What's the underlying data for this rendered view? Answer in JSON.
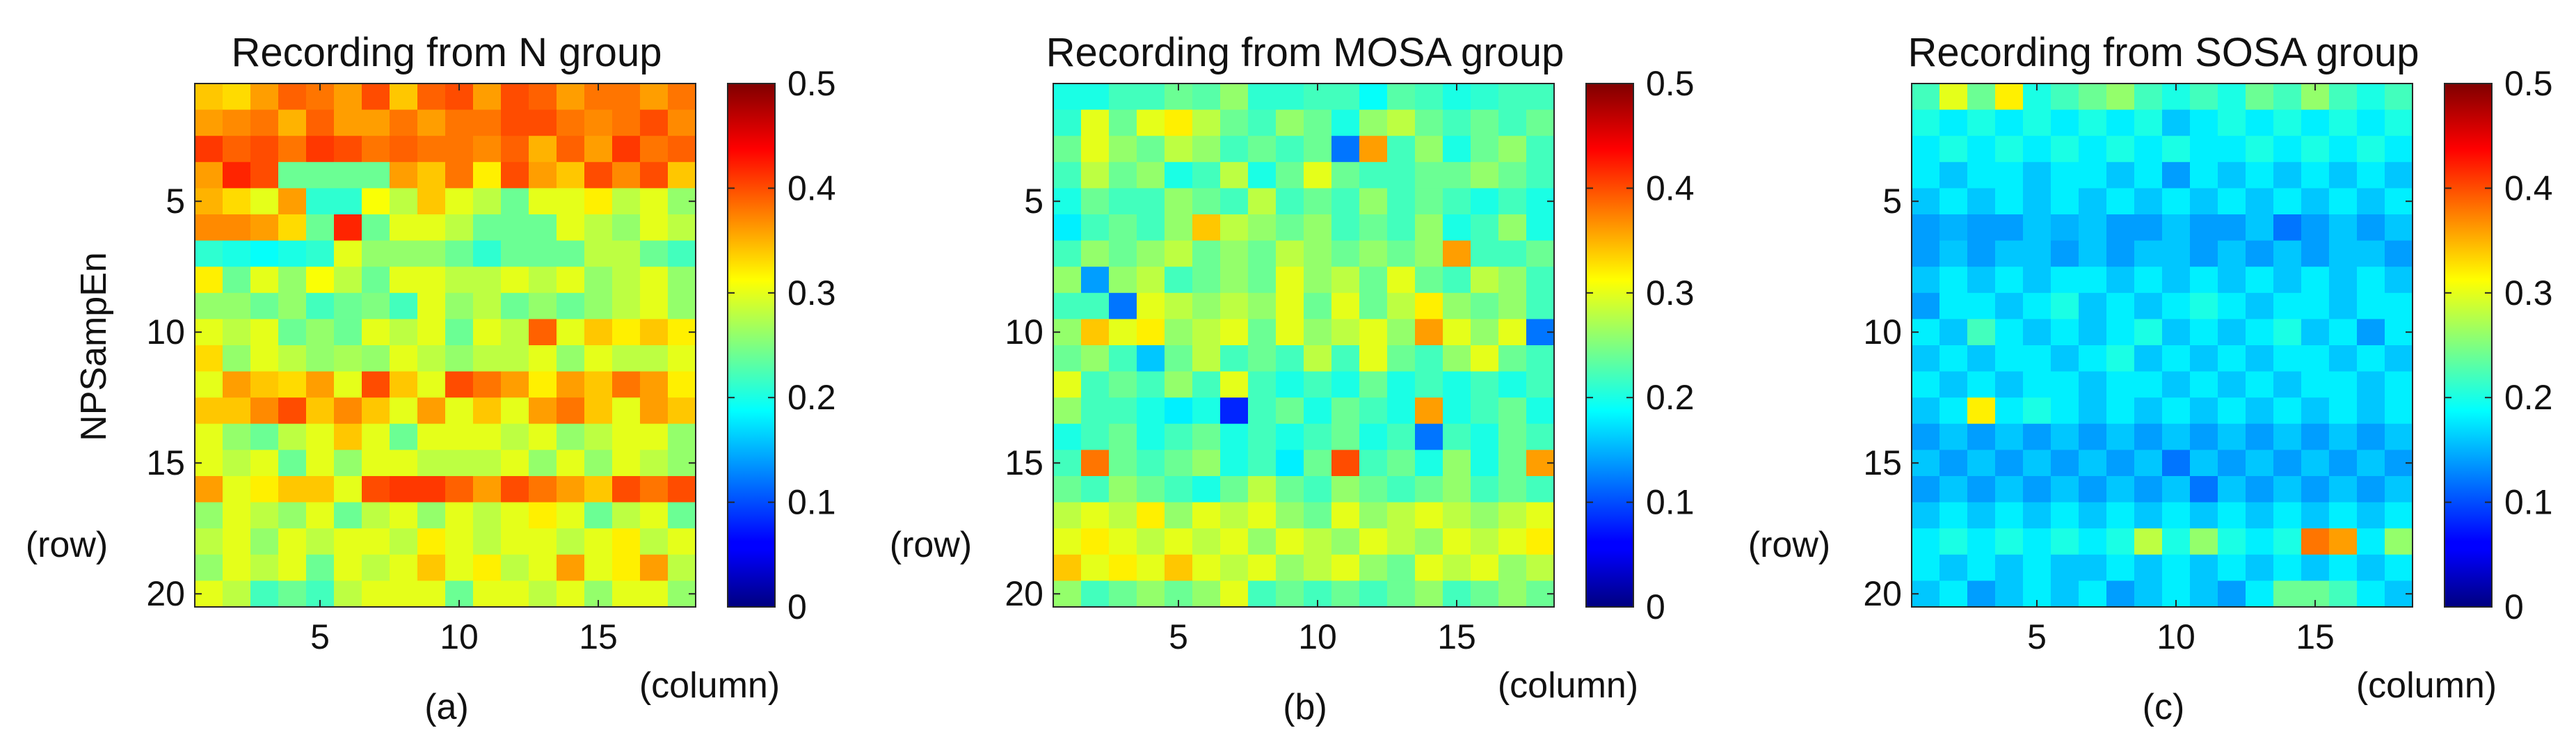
{
  "chart_data": [
    {
      "type": "heatmap",
      "title": "Recording from N group",
      "ylabel": "NPSampEn",
      "row_axis_note": "(row)",
      "column_axis_note": "(column)",
      "caption": "(a)",
      "x_ticks": [
        5,
        10,
        15
      ],
      "y_ticks": [
        5,
        10,
        15,
        20
      ],
      "colorbar_ticks": [
        0,
        0.1,
        0.2,
        0.3,
        0.4,
        0.5
      ],
      "clim": [
        0,
        0.5
      ],
      "colormap": "jet",
      "n_rows": 20,
      "n_cols": 18,
      "values": [
        [
          0.34,
          0.33,
          0.36,
          0.39,
          0.38,
          0.36,
          0.4,
          0.34,
          0.39,
          0.4,
          0.36,
          0.4,
          0.39,
          0.36,
          0.38,
          0.38,
          0.36,
          0.38
        ],
        [
          0.36,
          0.37,
          0.38,
          0.35,
          0.39,
          0.36,
          0.36,
          0.38,
          0.36,
          0.38,
          0.38,
          0.4,
          0.4,
          0.38,
          0.37,
          0.38,
          0.4,
          0.37
        ],
        [
          0.41,
          0.39,
          0.4,
          0.38,
          0.41,
          0.4,
          0.38,
          0.39,
          0.38,
          0.38,
          0.37,
          0.39,
          0.35,
          0.39,
          0.36,
          0.41,
          0.38,
          0.39
        ],
        [
          0.36,
          0.42,
          0.4,
          0.24,
          0.24,
          0.24,
          0.24,
          0.36,
          0.34,
          0.38,
          0.32,
          0.4,
          0.36,
          0.34,
          0.4,
          0.37,
          0.4,
          0.34
        ],
        [
          0.35,
          0.33,
          0.3,
          0.36,
          0.21,
          0.21,
          0.31,
          0.28,
          0.34,
          0.3,
          0.28,
          0.24,
          0.3,
          0.3,
          0.32,
          0.28,
          0.3,
          0.26
        ],
        [
          0.37,
          0.37,
          0.36,
          0.33,
          0.24,
          0.42,
          0.24,
          0.3,
          0.3,
          0.28,
          0.24,
          0.24,
          0.24,
          0.3,
          0.28,
          0.26,
          0.3,
          0.28
        ],
        [
          0.21,
          0.2,
          0.19,
          0.2,
          0.21,
          0.3,
          0.26,
          0.26,
          0.26,
          0.24,
          0.21,
          0.24,
          0.24,
          0.24,
          0.28,
          0.28,
          0.24,
          0.22
        ],
        [
          0.32,
          0.24,
          0.3,
          0.26,
          0.31,
          0.28,
          0.24,
          0.3,
          0.3,
          0.28,
          0.28,
          0.3,
          0.28,
          0.3,
          0.26,
          0.28,
          0.3,
          0.26
        ],
        [
          0.26,
          0.26,
          0.24,
          0.26,
          0.22,
          0.24,
          0.25,
          0.22,
          0.3,
          0.26,
          0.28,
          0.24,
          0.26,
          0.24,
          0.26,
          0.28,
          0.3,
          0.26
        ],
        [
          0.3,
          0.28,
          0.3,
          0.24,
          0.26,
          0.24,
          0.3,
          0.28,
          0.3,
          0.24,
          0.3,
          0.28,
          0.39,
          0.3,
          0.34,
          0.32,
          0.34,
          0.32
        ],
        [
          0.33,
          0.26,
          0.3,
          0.28,
          0.26,
          0.27,
          0.26,
          0.3,
          0.28,
          0.26,
          0.28,
          0.28,
          0.3,
          0.26,
          0.3,
          0.28,
          0.28,
          0.3
        ],
        [
          0.3,
          0.36,
          0.34,
          0.33,
          0.36,
          0.3,
          0.4,
          0.34,
          0.3,
          0.4,
          0.38,
          0.36,
          0.32,
          0.36,
          0.34,
          0.38,
          0.36,
          0.32
        ],
        [
          0.34,
          0.34,
          0.37,
          0.4,
          0.34,
          0.37,
          0.34,
          0.3,
          0.36,
          0.3,
          0.34,
          0.3,
          0.36,
          0.38,
          0.34,
          0.3,
          0.36,
          0.34
        ],
        [
          0.3,
          0.26,
          0.24,
          0.28,
          0.3,
          0.34,
          0.3,
          0.24,
          0.3,
          0.3,
          0.3,
          0.28,
          0.3,
          0.26,
          0.28,
          0.3,
          0.3,
          0.26
        ],
        [
          0.3,
          0.28,
          0.3,
          0.24,
          0.3,
          0.26,
          0.3,
          0.3,
          0.28,
          0.28,
          0.28,
          0.3,
          0.26,
          0.3,
          0.26,
          0.3,
          0.28,
          0.26
        ],
        [
          0.36,
          0.3,
          0.32,
          0.34,
          0.34,
          0.3,
          0.4,
          0.41,
          0.41,
          0.39,
          0.36,
          0.4,
          0.38,
          0.36,
          0.34,
          0.4,
          0.38,
          0.4
        ],
        [
          0.26,
          0.3,
          0.28,
          0.26,
          0.3,
          0.24,
          0.28,
          0.3,
          0.26,
          0.3,
          0.28,
          0.3,
          0.32,
          0.3,
          0.24,
          0.28,
          0.3,
          0.24
        ],
        [
          0.28,
          0.3,
          0.26,
          0.3,
          0.28,
          0.3,
          0.3,
          0.28,
          0.32,
          0.3,
          0.28,
          0.3,
          0.3,
          0.28,
          0.3,
          0.32,
          0.28,
          0.3
        ],
        [
          0.26,
          0.3,
          0.28,
          0.3,
          0.24,
          0.3,
          0.28,
          0.3,
          0.34,
          0.3,
          0.32,
          0.28,
          0.3,
          0.36,
          0.3,
          0.32,
          0.36,
          0.28
        ],
        [
          0.3,
          0.28,
          0.22,
          0.24,
          0.22,
          0.28,
          0.3,
          0.3,
          0.3,
          0.24,
          0.3,
          0.3,
          0.28,
          0.3,
          0.26,
          0.3,
          0.3,
          0.26
        ]
      ]
    },
    {
      "type": "heatmap",
      "title": "Recording from MOSA group",
      "row_axis_note": "(row)",
      "column_axis_note": "(column)",
      "caption": "(b)",
      "x_ticks": [
        5,
        10,
        15
      ],
      "y_ticks": [
        5,
        10,
        15,
        20
      ],
      "colorbar_ticks": [
        0,
        0.1,
        0.2,
        0.3,
        0.4,
        0.5
      ],
      "clim": [
        0,
        0.5
      ],
      "colormap": "jet",
      "n_rows": 20,
      "n_cols": 18,
      "values": [
        [
          0.2,
          0.2,
          0.22,
          0.22,
          0.24,
          0.23,
          0.26,
          0.21,
          0.21,
          0.22,
          0.22,
          0.19,
          0.23,
          0.22,
          0.2,
          0.21,
          0.22,
          0.22
        ],
        [
          0.21,
          0.3,
          0.24,
          0.3,
          0.32,
          0.28,
          0.24,
          0.22,
          0.26,
          0.24,
          0.2,
          0.26,
          0.28,
          0.24,
          0.22,
          0.24,
          0.22,
          0.24
        ],
        [
          0.24,
          0.3,
          0.26,
          0.24,
          0.28,
          0.26,
          0.22,
          0.24,
          0.22,
          0.24,
          0.12,
          0.36,
          0.22,
          0.26,
          0.2,
          0.24,
          0.26,
          0.22
        ],
        [
          0.22,
          0.28,
          0.24,
          0.26,
          0.2,
          0.22,
          0.28,
          0.2,
          0.24,
          0.3,
          0.24,
          0.22,
          0.22,
          0.24,
          0.24,
          0.26,
          0.24,
          0.22
        ],
        [
          0.2,
          0.24,
          0.22,
          0.22,
          0.26,
          0.24,
          0.22,
          0.28,
          0.22,
          0.24,
          0.22,
          0.26,
          0.22,
          0.24,
          0.22,
          0.2,
          0.22,
          0.2
        ],
        [
          0.18,
          0.22,
          0.24,
          0.22,
          0.26,
          0.34,
          0.28,
          0.26,
          0.24,
          0.26,
          0.22,
          0.24,
          0.22,
          0.26,
          0.2,
          0.22,
          0.26,
          0.2
        ],
        [
          0.22,
          0.26,
          0.24,
          0.26,
          0.28,
          0.24,
          0.26,
          0.24,
          0.28,
          0.26,
          0.24,
          0.26,
          0.24,
          0.26,
          0.36,
          0.22,
          0.22,
          0.24
        ],
        [
          0.26,
          0.14,
          0.26,
          0.28,
          0.22,
          0.24,
          0.26,
          0.24,
          0.3,
          0.26,
          0.28,
          0.24,
          0.3,
          0.24,
          0.22,
          0.28,
          0.26,
          0.22
        ],
        [
          0.22,
          0.22,
          0.12,
          0.3,
          0.28,
          0.26,
          0.28,
          0.26,
          0.3,
          0.24,
          0.3,
          0.24,
          0.28,
          0.32,
          0.26,
          0.24,
          0.26,
          0.22
        ],
        [
          0.26,
          0.34,
          0.3,
          0.32,
          0.26,
          0.28,
          0.3,
          0.24,
          0.3,
          0.26,
          0.28,
          0.3,
          0.26,
          0.36,
          0.3,
          0.26,
          0.3,
          0.12
        ],
        [
          0.24,
          0.26,
          0.22,
          0.16,
          0.24,
          0.28,
          0.22,
          0.24,
          0.22,
          0.28,
          0.22,
          0.3,
          0.24,
          0.22,
          0.26,
          0.3,
          0.24,
          0.22
        ],
        [
          0.3,
          0.22,
          0.24,
          0.22,
          0.26,
          0.22,
          0.3,
          0.22,
          0.2,
          0.22,
          0.2,
          0.24,
          0.2,
          0.22,
          0.2,
          0.22,
          0.2,
          0.22
        ],
        [
          0.26,
          0.22,
          0.22,
          0.2,
          0.18,
          0.2,
          0.08,
          0.22,
          0.24,
          0.2,
          0.24,
          0.22,
          0.2,
          0.36,
          0.2,
          0.22,
          0.24,
          0.2
        ],
        [
          0.2,
          0.22,
          0.24,
          0.2,
          0.22,
          0.24,
          0.2,
          0.22,
          0.2,
          0.22,
          0.24,
          0.2,
          0.22,
          0.12,
          0.22,
          0.2,
          0.24,
          0.22
        ],
        [
          0.22,
          0.38,
          0.24,
          0.22,
          0.24,
          0.26,
          0.2,
          0.22,
          0.18,
          0.24,
          0.4,
          0.22,
          0.24,
          0.2,
          0.26,
          0.2,
          0.24,
          0.36
        ],
        [
          0.24,
          0.22,
          0.26,
          0.24,
          0.22,
          0.2,
          0.24,
          0.28,
          0.24,
          0.22,
          0.26,
          0.24,
          0.22,
          0.24,
          0.26,
          0.22,
          0.24,
          0.22
        ],
        [
          0.28,
          0.3,
          0.28,
          0.32,
          0.26,
          0.3,
          0.28,
          0.3,
          0.26,
          0.24,
          0.3,
          0.26,
          0.28,
          0.3,
          0.28,
          0.26,
          0.28,
          0.3
        ],
        [
          0.3,
          0.32,
          0.3,
          0.28,
          0.3,
          0.28,
          0.3,
          0.26,
          0.3,
          0.28,
          0.26,
          0.3,
          0.28,
          0.26,
          0.3,
          0.28,
          0.3,
          0.32
        ],
        [
          0.34,
          0.3,
          0.32,
          0.3,
          0.34,
          0.3,
          0.28,
          0.3,
          0.26,
          0.28,
          0.3,
          0.26,
          0.24,
          0.3,
          0.28,
          0.3,
          0.26,
          0.28
        ],
        [
          0.26,
          0.22,
          0.24,
          0.26,
          0.24,
          0.26,
          0.3,
          0.22,
          0.24,
          0.22,
          0.24,
          0.22,
          0.24,
          0.26,
          0.22,
          0.24,
          0.26,
          0.24
        ]
      ]
    },
    {
      "type": "heatmap",
      "title": "Recording from SOSA group",
      "row_axis_note": "(row)",
      "column_axis_note": "(column)",
      "caption": "(c)",
      "x_ticks": [
        5,
        10,
        15
      ],
      "y_ticks": [
        5,
        10,
        15,
        20
      ],
      "colorbar_ticks": [
        0,
        0.1,
        0.2,
        0.3,
        0.4,
        0.5
      ],
      "clim": [
        0,
        0.5
      ],
      "colormap": "jet",
      "n_rows": 20,
      "n_cols": 18,
      "values": [
        [
          0.22,
          0.3,
          0.24,
          0.32,
          0.2,
          0.22,
          0.24,
          0.26,
          0.22,
          0.2,
          0.22,
          0.2,
          0.24,
          0.22,
          0.26,
          0.22,
          0.2,
          0.22
        ],
        [
          0.2,
          0.18,
          0.2,
          0.18,
          0.2,
          0.18,
          0.2,
          0.18,
          0.2,
          0.16,
          0.18,
          0.2,
          0.18,
          0.2,
          0.18,
          0.2,
          0.18,
          0.2
        ],
        [
          0.18,
          0.2,
          0.18,
          0.2,
          0.18,
          0.2,
          0.18,
          0.2,
          0.18,
          0.2,
          0.18,
          0.18,
          0.2,
          0.18,
          0.2,
          0.18,
          0.2,
          0.18
        ],
        [
          0.18,
          0.16,
          0.18,
          0.18,
          0.16,
          0.18,
          0.18,
          0.16,
          0.18,
          0.14,
          0.18,
          0.16,
          0.18,
          0.16,
          0.18,
          0.16,
          0.18,
          0.16
        ],
        [
          0.16,
          0.18,
          0.16,
          0.18,
          0.16,
          0.18,
          0.16,
          0.18,
          0.16,
          0.18,
          0.16,
          0.18,
          0.16,
          0.18,
          0.16,
          0.18,
          0.16,
          0.18
        ],
        [
          0.14,
          0.15,
          0.14,
          0.14,
          0.16,
          0.15,
          0.16,
          0.14,
          0.14,
          0.16,
          0.14,
          0.14,
          0.16,
          0.12,
          0.14,
          0.16,
          0.14,
          0.16
        ],
        [
          0.14,
          0.16,
          0.14,
          0.16,
          0.16,
          0.14,
          0.16,
          0.14,
          0.16,
          0.16,
          0.14,
          0.16,
          0.14,
          0.16,
          0.14,
          0.16,
          0.16,
          0.14
        ],
        [
          0.16,
          0.18,
          0.16,
          0.18,
          0.16,
          0.18,
          0.18,
          0.16,
          0.18,
          0.16,
          0.18,
          0.16,
          0.18,
          0.16,
          0.18,
          0.16,
          0.18,
          0.16
        ],
        [
          0.14,
          0.18,
          0.18,
          0.16,
          0.18,
          0.2,
          0.16,
          0.18,
          0.16,
          0.18,
          0.2,
          0.18,
          0.16,
          0.18,
          0.18,
          0.16,
          0.18,
          0.18
        ],
        [
          0.18,
          0.16,
          0.22,
          0.18,
          0.16,
          0.18,
          0.16,
          0.18,
          0.2,
          0.16,
          0.18,
          0.16,
          0.18,
          0.2,
          0.16,
          0.18,
          0.14,
          0.18
        ],
        [
          0.16,
          0.18,
          0.16,
          0.18,
          0.18,
          0.16,
          0.18,
          0.2,
          0.16,
          0.18,
          0.16,
          0.18,
          0.16,
          0.18,
          0.18,
          0.16,
          0.18,
          0.16
        ],
        [
          0.18,
          0.16,
          0.18,
          0.16,
          0.18,
          0.18,
          0.16,
          0.18,
          0.18,
          0.16,
          0.18,
          0.16,
          0.18,
          0.16,
          0.18,
          0.18,
          0.16,
          0.18
        ],
        [
          0.16,
          0.18,
          0.32,
          0.18,
          0.2,
          0.18,
          0.16,
          0.18,
          0.16,
          0.18,
          0.16,
          0.18,
          0.16,
          0.18,
          0.16,
          0.18,
          0.16,
          0.18
        ],
        [
          0.14,
          0.16,
          0.14,
          0.16,
          0.14,
          0.16,
          0.14,
          0.16,
          0.14,
          0.16,
          0.14,
          0.16,
          0.14,
          0.16,
          0.14,
          0.16,
          0.14,
          0.16
        ],
        [
          0.16,
          0.14,
          0.16,
          0.14,
          0.16,
          0.14,
          0.16,
          0.14,
          0.16,
          0.12,
          0.16,
          0.14,
          0.16,
          0.14,
          0.16,
          0.14,
          0.16,
          0.14
        ],
        [
          0.14,
          0.16,
          0.14,
          0.16,
          0.14,
          0.16,
          0.14,
          0.16,
          0.14,
          0.16,
          0.12,
          0.16,
          0.14,
          0.16,
          0.14,
          0.16,
          0.14,
          0.16
        ],
        [
          0.16,
          0.18,
          0.16,
          0.18,
          0.16,
          0.18,
          0.16,
          0.18,
          0.16,
          0.18,
          0.16,
          0.18,
          0.16,
          0.18,
          0.16,
          0.18,
          0.16,
          0.18
        ],
        [
          0.18,
          0.2,
          0.18,
          0.2,
          0.18,
          0.2,
          0.18,
          0.2,
          0.28,
          0.2,
          0.26,
          0.2,
          0.18,
          0.2,
          0.38,
          0.36,
          0.18,
          0.26
        ],
        [
          0.18,
          0.16,
          0.18,
          0.16,
          0.18,
          0.16,
          0.16,
          0.18,
          0.16,
          0.18,
          0.16,
          0.18,
          0.16,
          0.18,
          0.16,
          0.18,
          0.16,
          0.18
        ],
        [
          0.16,
          0.18,
          0.14,
          0.16,
          0.18,
          0.16,
          0.18,
          0.14,
          0.16,
          0.18,
          0.16,
          0.14,
          0.18,
          0.24,
          0.24,
          0.22,
          0.18,
          0.16
        ]
      ]
    }
  ]
}
